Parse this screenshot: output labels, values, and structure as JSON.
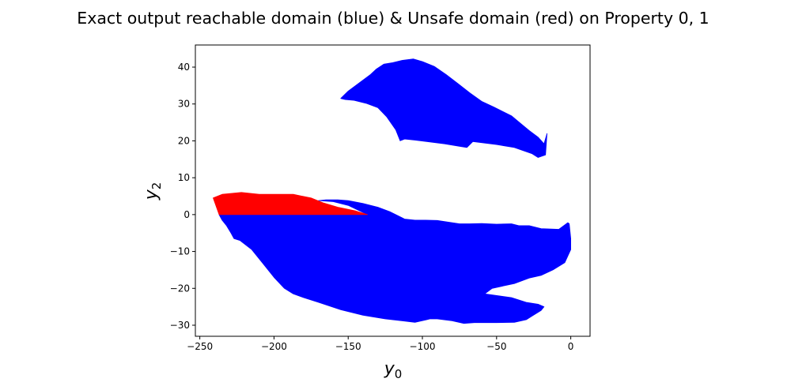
{
  "chart_data": {
    "type": "area",
    "title": "Exact output reachable domain (blue) & Unsafe domain (red) on Property 0, 1",
    "xlabel": {
      "base": "y",
      "sub": "0"
    },
    "ylabel": {
      "base": "y",
      "sub": "2"
    },
    "xlim": [
      -253,
      13
    ],
    "ylim": [
      -33,
      46
    ],
    "xticks": [
      -250,
      -200,
      -150,
      -100,
      -50,
      0
    ],
    "yticks": [
      -30,
      -20,
      -10,
      0,
      10,
      20,
      30,
      40
    ],
    "grid": false,
    "colors": {
      "reachable": "#0000ff",
      "unsafe": "#ff0000"
    },
    "regions": [
      {
        "kind": "reachable",
        "points": [
          [
            -155,
            31.5
          ],
          [
            -150,
            33.5
          ],
          [
            -145,
            35
          ],
          [
            -140,
            36.5
          ],
          [
            -135,
            38
          ],
          [
            -131,
            39.5
          ],
          [
            -126,
            40.8
          ],
          [
            -120,
            41.2
          ],
          [
            -114,
            41.8
          ],
          [
            -106,
            42.2
          ],
          [
            -100,
            41.5
          ],
          [
            -92,
            40.2
          ],
          [
            -84,
            38
          ],
          [
            -76,
            35.5
          ],
          [
            -68,
            33
          ],
          [
            -60,
            30.7
          ],
          [
            -52,
            29.2
          ],
          [
            -46,
            28
          ],
          [
            -40,
            26.8
          ],
          [
            -34,
            24.8
          ],
          [
            -28,
            22.8
          ],
          [
            -22,
            21
          ],
          [
            -18,
            19.2
          ],
          [
            -16,
            22
          ],
          [
            -17,
            16.2
          ],
          [
            -22,
            15.5
          ],
          [
            -26,
            16.5
          ],
          [
            -38,
            18.2
          ],
          [
            -50,
            19
          ],
          [
            -66,
            19.8
          ],
          [
            -70,
            18.2
          ],
          [
            -75,
            18.5
          ],
          [
            -85,
            19.2
          ],
          [
            -97,
            19.8
          ],
          [
            -105,
            20.2
          ],
          [
            -112,
            20.5
          ],
          [
            -115,
            20
          ],
          [
            -118,
            23
          ],
          [
            -124,
            26.5
          ],
          [
            -130,
            29
          ],
          [
            -138,
            30.2
          ],
          [
            -146,
            31
          ],
          [
            -152,
            31.2
          ]
        ]
      },
      {
        "kind": "reachable",
        "points": [
          [
            -237,
            0
          ],
          [
            -235,
            -1.5
          ],
          [
            -232,
            -3
          ],
          [
            -229,
            -5
          ],
          [
            -227,
            -6.5
          ],
          [
            -223,
            -7
          ],
          [
            -215,
            -9.5
          ],
          [
            -207,
            -13.5
          ],
          [
            -200,
            -17
          ],
          [
            -193,
            -20
          ],
          [
            -187,
            -21.5
          ],
          [
            -180,
            -22.5
          ],
          [
            -170,
            -23.8
          ],
          [
            -155,
            -25.8
          ],
          [
            -140,
            -27.3
          ],
          [
            -125,
            -28.3
          ],
          [
            -105,
            -29.2
          ],
          [
            -97,
            -28.5
          ],
          [
            -95,
            -28.3
          ],
          [
            -90,
            -28.3
          ],
          [
            -80,
            -28.8
          ],
          [
            -72,
            -29.5
          ],
          [
            -65,
            -29.3
          ],
          [
            -50,
            -29.3
          ],
          [
            -38,
            -29.2
          ],
          [
            -30,
            -28.5
          ],
          [
            -26,
            -27.5
          ],
          [
            -20,
            -26
          ],
          [
            -18,
            -25
          ],
          [
            -22,
            -24.3
          ],
          [
            -30,
            -23.8
          ],
          [
            -40,
            -22.5
          ],
          [
            -58,
            -21.5
          ],
          [
            -53,
            -20
          ],
          [
            -38,
            -18.7
          ],
          [
            -28,
            -17.2
          ],
          [
            -20,
            -16.5
          ],
          [
            -12,
            -15
          ],
          [
            -4,
            -13
          ],
          [
            0,
            -9.5
          ],
          [
            0,
            -6.5
          ],
          [
            -1,
            -2.5
          ],
          [
            -2,
            -2.2
          ],
          [
            -8,
            -4
          ],
          [
            -20,
            -3.8
          ],
          [
            -28,
            -3
          ],
          [
            -35,
            -3
          ],
          [
            -40,
            -2.5
          ],
          [
            -50,
            -2.6
          ],
          [
            -60,
            -2.4
          ],
          [
            -68,
            -2.5
          ],
          [
            -75,
            -2.5
          ],
          [
            -90,
            -1.6
          ],
          [
            -98,
            -1.5
          ],
          [
            -105,
            -1.5
          ],
          [
            -112,
            -1.2
          ],
          [
            -122,
            0.8
          ],
          [
            -130,
            2
          ],
          [
            -140,
            3
          ],
          [
            -150,
            3.8
          ],
          [
            -157,
            4
          ],
          [
            -165,
            4
          ],
          [
            -170,
            3.8
          ],
          [
            -160,
            3.5
          ],
          [
            -150,
            2.5
          ],
          [
            -137,
            0
          ]
        ]
      },
      {
        "kind": "unsafe",
        "points": [
          [
            -237,
            0
          ],
          [
            -241,
            4.5
          ],
          [
            -235,
            5.5
          ],
          [
            -222,
            6
          ],
          [
            -210,
            5.5
          ],
          [
            -200,
            5.5
          ],
          [
            -187,
            5.5
          ],
          [
            -175,
            4.5
          ],
          [
            -167,
            3.2
          ],
          [
            -157,
            2
          ],
          [
            -145,
            1
          ],
          [
            -137,
            0
          ]
        ]
      }
    ]
  }
}
